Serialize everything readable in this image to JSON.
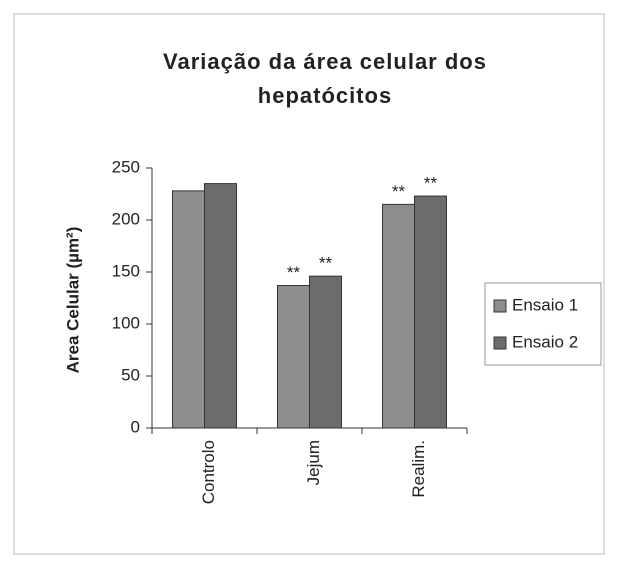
{
  "chart_data": {
    "type": "bar",
    "title": [
      "Variação da área celular dos",
      "hepatócitos"
    ],
    "ylabel": "Area Celular (µm²)",
    "categories": [
      "Controlo",
      "Jejum",
      "Realim."
    ],
    "series": [
      {
        "name": "Ensaio 1",
        "color": "#8e8e8e",
        "values": [
          228,
          137,
          215
        ],
        "labels": [
          null,
          "**",
          "**"
        ]
      },
      {
        "name": "Ensaio 2",
        "color": "#6c6c6c",
        "values": [
          235,
          146,
          223
        ],
        "labels": [
          null,
          "**",
          "**"
        ]
      }
    ],
    "ylim": [
      0,
      250
    ],
    "yticks": [
      0,
      50,
      100,
      150,
      200,
      250
    ],
    "legend": "right"
  }
}
